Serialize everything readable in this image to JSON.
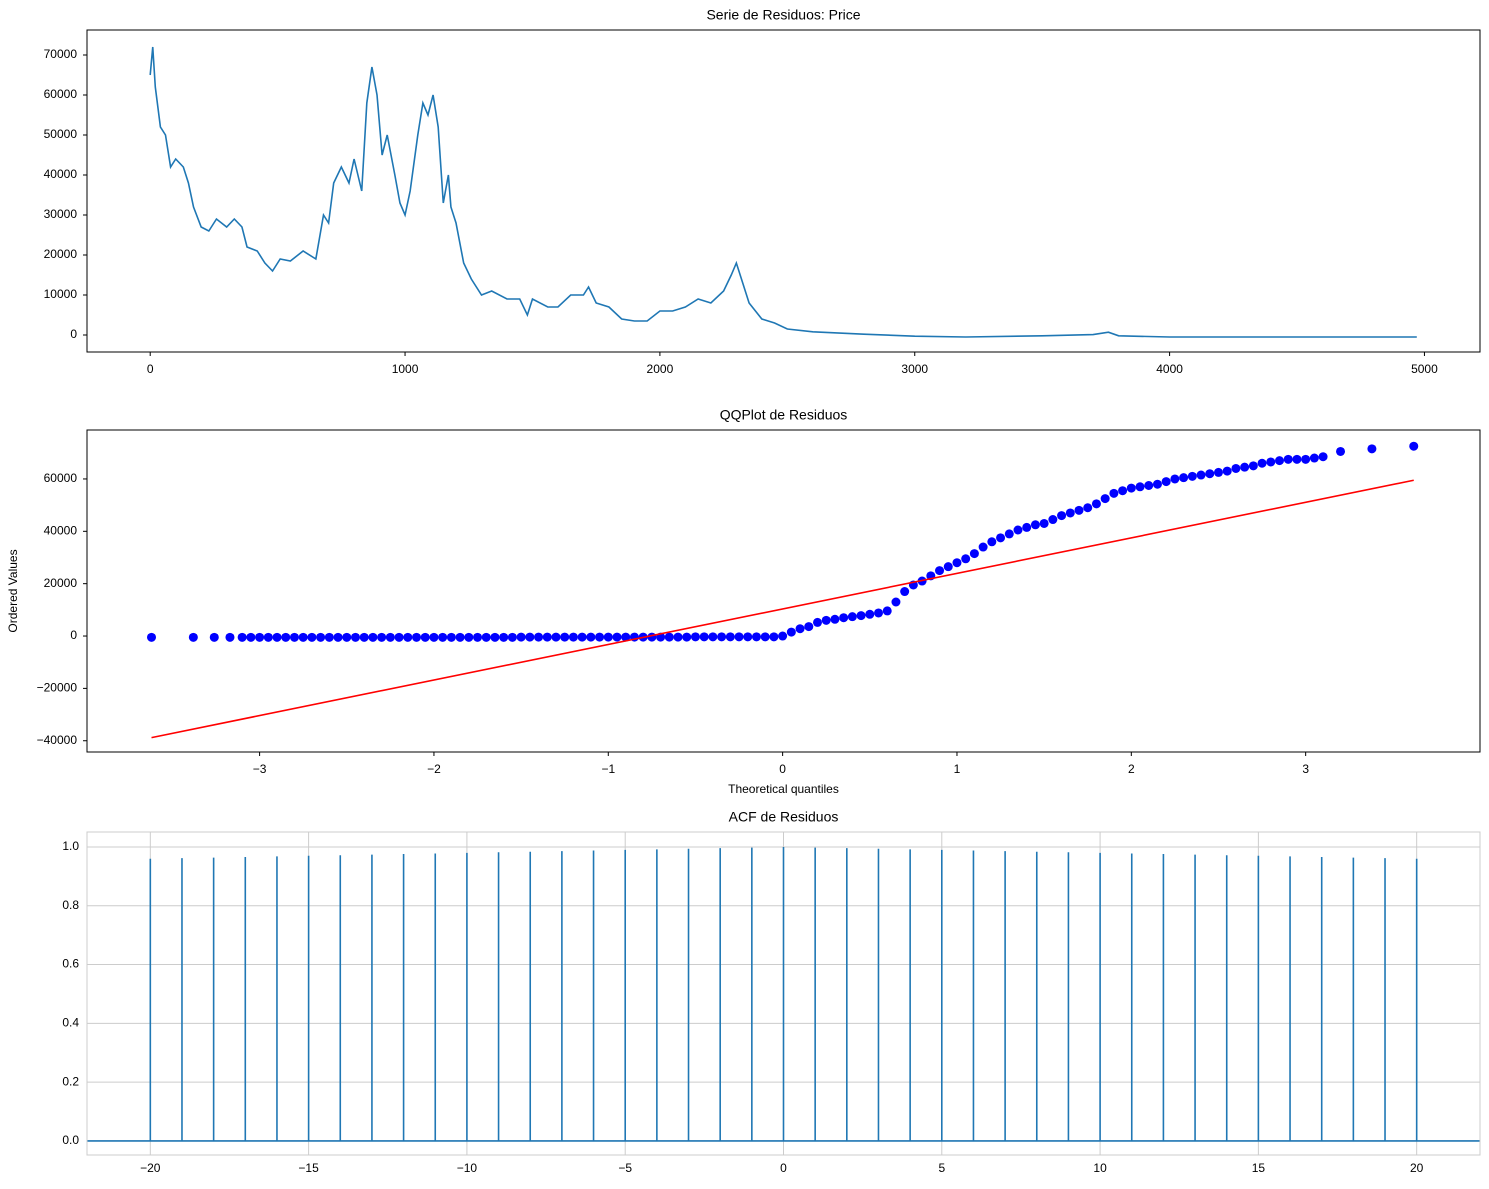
{
  "chart_data": [
    {
      "type": "line",
      "title": "Serie de Residuos: Price",
      "color": "#1f77b4",
      "grid": false,
      "x": [
        0,
        10,
        20,
        40,
        60,
        80,
        100,
        130,
        150,
        170,
        200,
        230,
        260,
        300,
        330,
        360,
        380,
        420,
        450,
        480,
        510,
        550,
        600,
        650,
        680,
        700,
        720,
        750,
        780,
        800,
        830,
        850,
        870,
        890,
        910,
        930,
        960,
        980,
        1000,
        1020,
        1050,
        1070,
        1090,
        1110,
        1130,
        1150,
        1170,
        1180,
        1200,
        1230,
        1260,
        1300,
        1340,
        1400,
        1450,
        1480,
        1500,
        1560,
        1600,
        1650,
        1700,
        1720,
        1750,
        1800,
        1850,
        1900,
        1950,
        2000,
        2050,
        2100,
        2150,
        2200,
        2250,
        2280,
        2300,
        2320,
        2350,
        2400,
        2450,
        2500,
        2600,
        2800,
        3000,
        3200,
        3500,
        3700,
        3760,
        3800,
        4000,
        4970
      ],
      "values": [
        65000,
        72000,
        62000,
        52000,
        50000,
        42000,
        44000,
        42000,
        38000,
        32000,
        27000,
        26000,
        29000,
        27000,
        29000,
        27000,
        22000,
        21000,
        18000,
        16000,
        19000,
        18500,
        21000,
        19000,
        30000,
        28000,
        38000,
        42000,
        38000,
        44000,
        36000,
        58000,
        67000,
        60000,
        45000,
        50000,
        40000,
        33000,
        30000,
        36000,
        50000,
        58000,
        55000,
        60000,
        52000,
        33000,
        40000,
        32000,
        28000,
        18000,
        14000,
        10000,
        11000,
        9000,
        9000,
        5000,
        9000,
        7000,
        7000,
        10000,
        10000,
        12000,
        8000,
        7000,
        4000,
        3500,
        3500,
        6000,
        6000,
        7000,
        9000,
        8000,
        11000,
        15000,
        18000,
        14000,
        8000,
        4000,
        3000,
        1500,
        800,
        200,
        -300,
        -500,
        -200,
        100,
        700,
        -200,
        -500,
        -500
      ],
      "xlim": [
        -248,
        5218
      ],
      "xticks": [
        0,
        1000,
        2000,
        3000,
        4000,
        5000
      ],
      "ylim": [
        -4250,
        76250
      ],
      "yticks": [
        0,
        10000,
        20000,
        30000,
        40000,
        50000,
        60000,
        70000
      ]
    },
    {
      "type": "qqplot",
      "title": "QQPlot de Residuos",
      "x_label": "Theoretical quantiles",
      "y_label": "Ordered Values",
      "grid": false,
      "points": {
        "color": "#0000ff",
        "x": [
          -3.62,
          -3.38,
          -3.26,
          -3.17,
          -3.1,
          -3.05,
          -3,
          -2.95,
          -2.9,
          -2.85,
          -2.8,
          -2.75,
          -2.7,
          -2.65,
          -2.6,
          -2.55,
          -2.5,
          -2.45,
          -2.4,
          -2.35,
          -2.3,
          -2.25,
          -2.2,
          -2.15,
          -2.1,
          -2.05,
          -2,
          -1.95,
          -1.9,
          -1.85,
          -1.8,
          -1.75,
          -1.7,
          -1.65,
          -1.6,
          -1.55,
          -1.5,
          -1.45,
          -1.4,
          -1.35,
          -1.3,
          -1.25,
          -1.2,
          -1.15,
          -1.1,
          -1.05,
          -1,
          -0.95,
          -0.9,
          -0.85,
          -0.8,
          -0.75,
          -0.7,
          -0.65,
          -0.6,
          -0.55,
          -0.5,
          -0.45,
          -0.4,
          -0.35,
          -0.3,
          -0.25,
          -0.2,
          -0.15,
          -0.1,
          -0.05,
          0,
          0.05,
          0.1,
          0.15,
          0.2,
          0.25,
          0.3,
          0.35,
          0.4,
          0.45,
          0.5,
          0.55,
          0.6,
          0.65,
          0.7,
          0.75,
          0.8,
          0.85,
          0.9,
          0.95,
          1,
          1.05,
          1.1,
          1.15,
          1.2,
          1.25,
          1.3,
          1.35,
          1.4,
          1.45,
          1.5,
          1.55,
          1.6,
          1.65,
          1.7,
          1.75,
          1.8,
          1.85,
          1.9,
          1.95,
          2,
          2.05,
          2.1,
          2.15,
          2.2,
          2.25,
          2.3,
          2.35,
          2.4,
          2.45,
          2.5,
          2.55,
          2.6,
          2.65,
          2.7,
          2.75,
          2.8,
          2.85,
          2.9,
          2.95,
          3,
          3.05,
          3.1,
          3.2,
          3.38,
          3.62
        ],
        "y": [
          -500,
          -500,
          -500,
          -500,
          -500,
          -500,
          -500,
          -500,
          -500,
          -500,
          -500,
          -500,
          -500,
          -500,
          -500,
          -500,
          -500,
          -500,
          -500,
          -500,
          -500,
          -500,
          -500,
          -500,
          -500,
          -500,
          -500,
          -500,
          -500,
          -500,
          -500,
          -500,
          -500,
          -500,
          -500,
          -500,
          -400,
          -400,
          -400,
          -400,
          -400,
          -400,
          -400,
          -400,
          -400,
          -400,
          -400,
          -400,
          -400,
          -400,
          -400,
          -400,
          -400,
          -400,
          -400,
          -400,
          -300,
          -300,
          -300,
          -300,
          -300,
          -300,
          -300,
          -300,
          -300,
          -300,
          0,
          1500,
          2800,
          3600,
          5200,
          6000,
          6400,
          7000,
          7400,
          7800,
          8300,
          8800,
          9600,
          13000,
          17000,
          19500,
          21000,
          23000,
          25000,
          26500,
          28000,
          29500,
          31500,
          34000,
          36000,
          37500,
          39000,
          40500,
          41500,
          42500,
          43000,
          44500,
          46000,
          47000,
          48000,
          49000,
          50500,
          52500,
          54500,
          55500,
          56500,
          57000,
          57500,
          58000,
          59000,
          60000,
          60500,
          61000,
          61500,
          62000,
          62500,
          63000,
          64000,
          64500,
          65000,
          66000,
          66500,
          67000,
          67500,
          67500,
          67500,
          68000,
          68500,
          70500,
          71500,
          72500
        ]
      },
      "fit_line": {
        "color": "#ff0000",
        "x": [
          -3.62,
          3.62
        ],
        "y": [
          -38800,
          59500
        ]
      },
      "xlim": [
        -3.99,
        4.0
      ],
      "xticks": [
        {
          "value": -3,
          "label": "−3"
        },
        {
          "value": -2,
          "label": "−2"
        },
        {
          "value": -1,
          "label": "−1"
        },
        0,
        1,
        2,
        3
      ],
      "ylim": [
        -44300,
        78700
      ],
      "yticks": [
        {
          "value": -40000,
          "label": "−40000"
        },
        {
          "value": -20000,
          "label": "−20000"
        },
        0,
        20000,
        40000,
        60000
      ]
    },
    {
      "type": "stem",
      "title": "ACF de Residuos",
      "color": "#1f77b4",
      "grid": true,
      "x": [
        -20,
        -19,
        -18,
        -17,
        -16,
        -15,
        -14,
        -13,
        -12,
        -11,
        -10,
        -9,
        -8,
        -7,
        -6,
        -5,
        -4,
        -3,
        -2,
        -1,
        0,
        1,
        2,
        3,
        4,
        5,
        6,
        7,
        8,
        9,
        10,
        11,
        12,
        13,
        14,
        15,
        16,
        17,
        18,
        19,
        20
      ],
      "values": [
        0.96,
        0.962,
        0.964,
        0.966,
        0.968,
        0.97,
        0.972,
        0.974,
        0.976,
        0.978,
        0.98,
        0.982,
        0.984,
        0.986,
        0.988,
        0.99,
        0.992,
        0.994,
        0.996,
        0.998,
        1,
        0.998,
        0.996,
        0.994,
        0.992,
        0.99,
        0.988,
        0.986,
        0.984,
        0.982,
        0.98,
        0.978,
        0.976,
        0.974,
        0.972,
        0.97,
        0.968,
        0.966,
        0.964,
        0.962,
        0.96
      ],
      "xlim": [
        -22,
        22
      ],
      "xticks": [
        {
          "value": -20,
          "label": "−20"
        },
        {
          "value": -15,
          "label": "−15"
        },
        {
          "value": -10,
          "label": "−10"
        },
        {
          "value": -5,
          "label": "−5"
        },
        0,
        5,
        10,
        15,
        20
      ],
      "ylim": [
        -0.048,
        1.051
      ],
      "yticks": [
        {
          "value": 0,
          "label": "0.0"
        },
        0.2,
        0.4,
        0.6,
        0.8,
        {
          "value": 1,
          "label": "1.0"
        }
      ]
    }
  ]
}
